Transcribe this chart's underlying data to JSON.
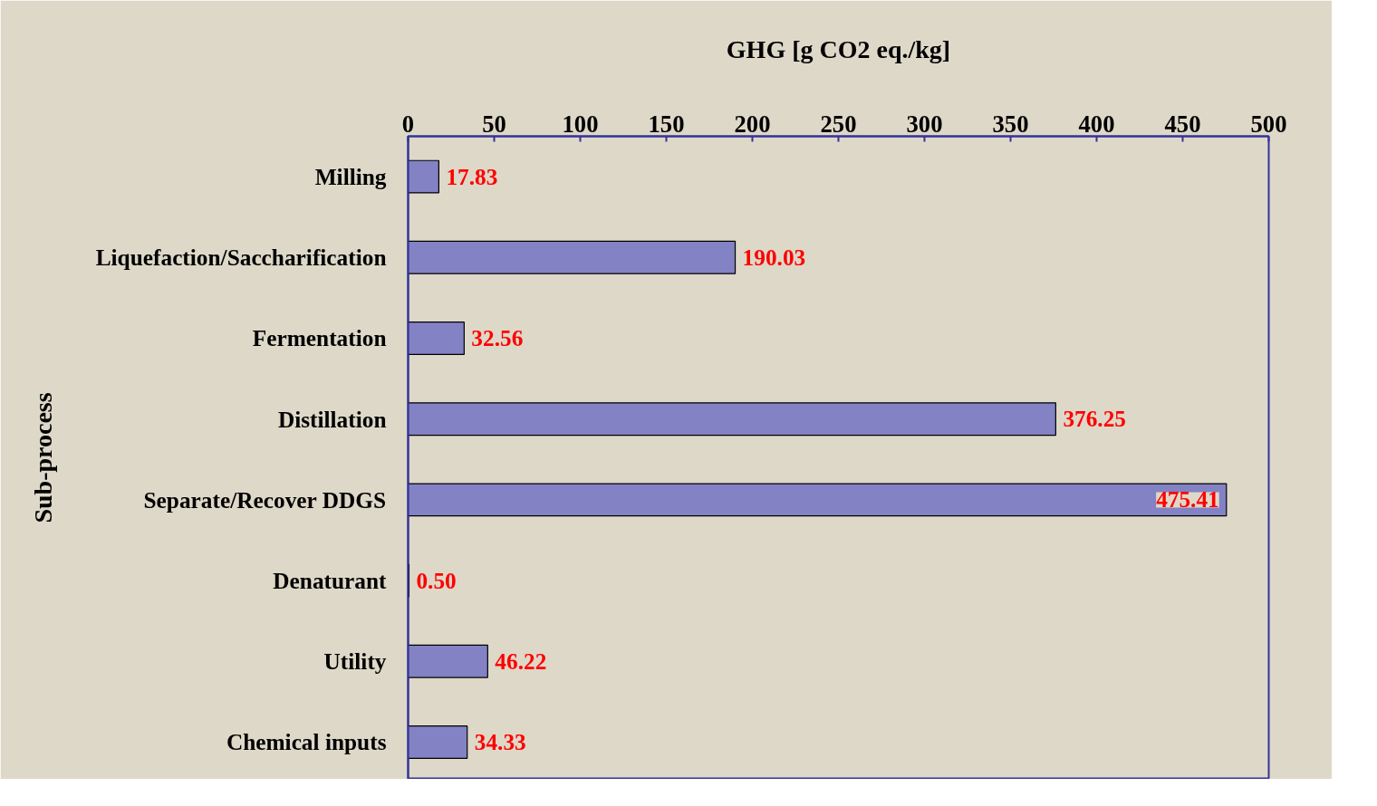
{
  "chart_data": {
    "type": "bar",
    "orientation": "horizontal",
    "xlabel": "GHG [g CO2 eq./kg]",
    "ylabel": "Sub-process",
    "categories": [
      "Milling",
      "Liquefaction/Saccharification",
      "Fermentation",
      "Distillation",
      "Separate/Recover DDGS",
      "Denaturant",
      "Utility",
      "Chemical inputs"
    ],
    "values": [
      17.83,
      190.03,
      32.56,
      376.25,
      475.41,
      0.5,
      46.22,
      34.33
    ],
    "value_labels": [
      "17.83",
      "190.03",
      "32.56",
      "376.25",
      "475.41",
      "0.50",
      "46.22",
      "34.33"
    ],
    "color": "#8282c4",
    "xlim": [
      0,
      500
    ],
    "xticks": [
      0,
      50,
      100,
      150,
      200,
      250,
      300,
      350,
      400,
      450,
      500
    ],
    "grid": false
  }
}
